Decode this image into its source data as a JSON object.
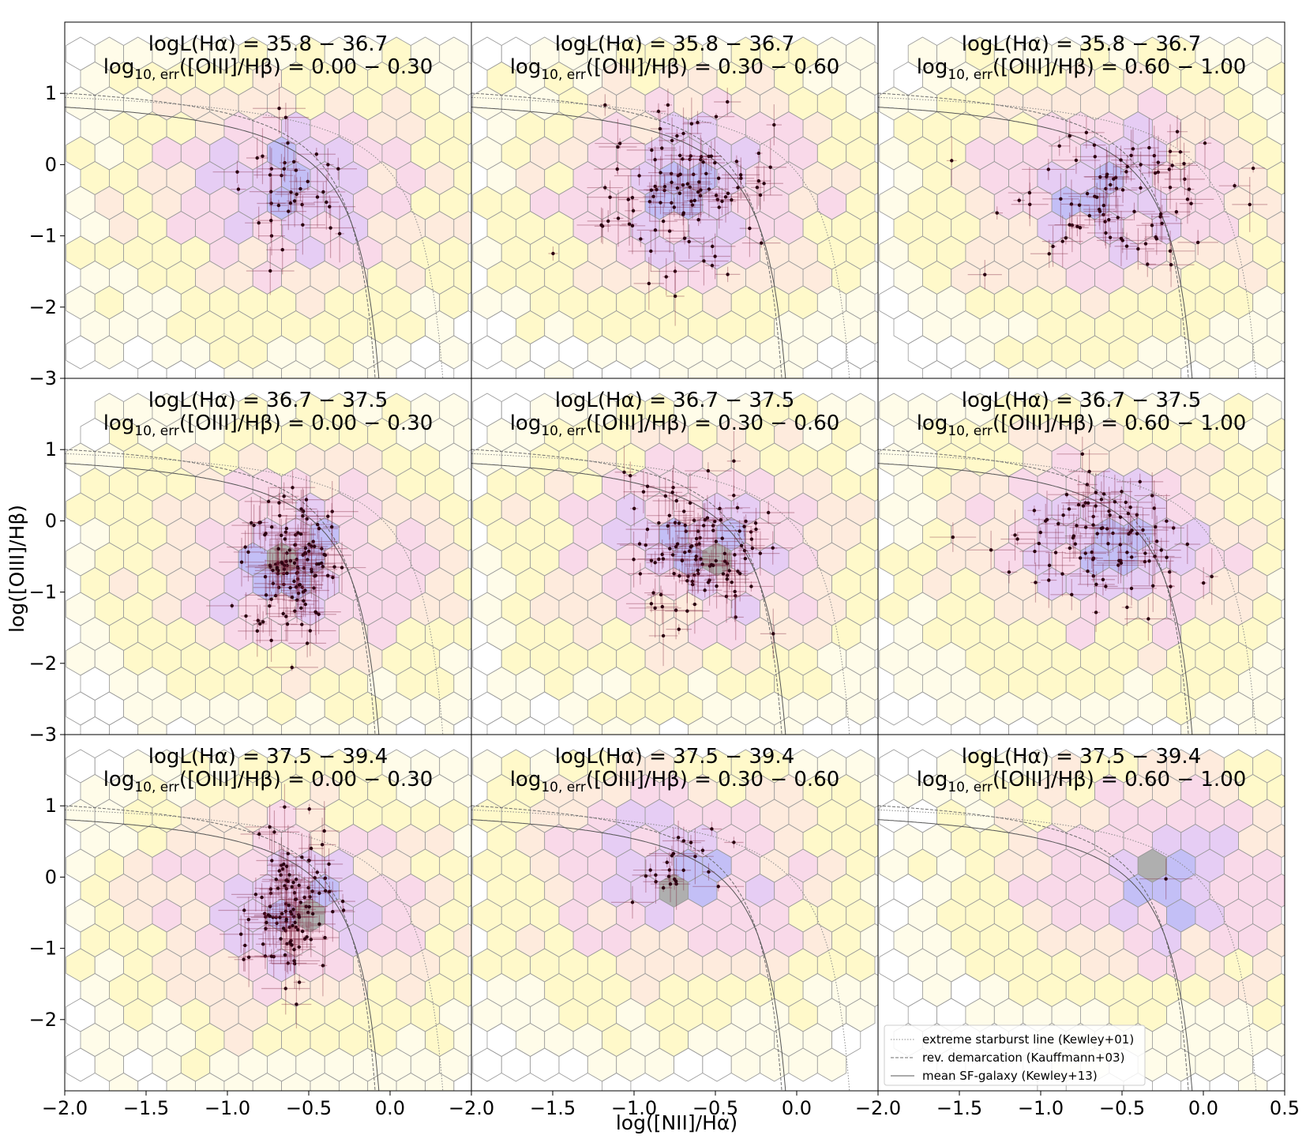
{
  "chart_data": {
    "type": "scatter",
    "layout": "3x3 grid of panels with shared axes",
    "xlabel": "log([NII]/Hα)",
    "ylabel": "log([OIII]/Hβ)",
    "xlim": [
      -2.0,
      0.5
    ],
    "ylim": [
      -3.0,
      2.0
    ],
    "x_ticks": [
      -2.0,
      -1.5,
      -1.0,
      -0.5,
      0.0
    ],
    "x_ticks_last_column": [
      -2.0,
      -1.5,
      -1.0,
      -0.5,
      0.0,
      0.5
    ],
    "x_tick_labels": [
      "−2.0",
      "−1.5",
      "−1.0",
      "−0.5",
      "0.0"
    ],
    "x_tick_labels_last_column": [
      "−2.0",
      "−1.5",
      "−1.0",
      "−0.5",
      "0.0",
      "0.5"
    ],
    "y_ticks": [
      1,
      0,
      -1,
      -2,
      -3
    ],
    "y_tick_labels": [
      "1",
      "0",
      "−1",
      "−2",
      "−3"
    ],
    "y_ticks_bottom_row": [
      1,
      0,
      -1,
      -2
    ],
    "y_tick_labels_bottom_row": [
      "1",
      "0",
      "−1",
      "−2"
    ],
    "grid": false,
    "legend": {
      "placement": "lower-left of bottom-right panel",
      "entries": [
        {
          "label": "extreme starburst line (Kewley+01)",
          "style": "dotted",
          "color": "#8a8a8a"
        },
        {
          "label": "rev. demarcation (Kauffmann+03)",
          "style": "dashed",
          "color": "#6d6d6d"
        },
        {
          "label": "mean SF-galaxy (Kewley+13)",
          "style": "solid",
          "color": "#555555"
        }
      ]
    },
    "hexbin_colors": [
      "#fffbe0",
      "#fff6b3",
      "#fde3cf",
      "#f7c9e0",
      "#dcb8f0",
      "#a9a4f2",
      "#8d8d8d"
    ],
    "point_color": "#2a0010",
    "dense_core_color": "#b41818",
    "panels": [
      {
        "row": 0,
        "col": 0,
        "title1": "logL(Hα) = 35.8 − 36.7",
        "title2_pre": "log",
        "title2_sub": "10, err",
        "title2_post": "([OIII]/Hβ) = 0.00 − 0.30"
      },
      {
        "row": 0,
        "col": 1,
        "title1": "logL(Hα) = 35.8 − 36.7",
        "title2_pre": "log",
        "title2_sub": "10, err",
        "title2_post": "([OIII]/Hβ) = 0.30 − 0.60"
      },
      {
        "row": 0,
        "col": 2,
        "title1": "logL(Hα) = 35.8 − 36.7",
        "title2_pre": "log",
        "title2_sub": "10, err",
        "title2_post": "([OIII]/Hβ) = 0.60 − 1.00"
      },
      {
        "row": 1,
        "col": 0,
        "title1": "logL(Hα) = 36.7 − 37.5",
        "title2_pre": "log",
        "title2_sub": "10, err",
        "title2_post": "([OIII]/Hβ) = 0.00 − 0.30"
      },
      {
        "row": 1,
        "col": 1,
        "title1": "logL(Hα) = 36.7 − 37.5",
        "title2_pre": "log",
        "title2_sub": "10, err",
        "title2_post": "([OIII]/Hβ) = 0.30 − 0.60"
      },
      {
        "row": 1,
        "col": 2,
        "title1": "logL(Hα) = 36.7 − 37.5",
        "title2_pre": "log",
        "title2_sub": "10, err",
        "title2_post": "([OIII]/Hβ) = 0.60 − 1.00"
      },
      {
        "row": 2,
        "col": 0,
        "title1": "logL(Hα) = 37.5 − 39.4",
        "title2_pre": "log",
        "title2_sub": "10, err",
        "title2_post": "([OIII]/Hβ) = 0.00 − 0.30"
      },
      {
        "row": 2,
        "col": 1,
        "title1": "logL(Hα) = 37.5 − 39.4",
        "title2_pre": "log",
        "title2_sub": "10, err",
        "title2_post": "([OIII]/Hβ) = 0.30 − 0.60"
      },
      {
        "row": 2,
        "col": 2,
        "title1": "logL(Hα) = 37.5 − 39.4",
        "title2_pre": "log",
        "title2_sub": "10, err",
        "title2_post": "([OIII]/Hβ) = 0.60 − 1.00"
      }
    ],
    "point_clusters": [
      {
        "panel": 0,
        "cx": -0.6,
        "cy": -0.4,
        "sx": 0.15,
        "sy": 0.45,
        "n": 40
      },
      {
        "panel": 1,
        "cx": -0.65,
        "cy": -0.4,
        "sx": 0.25,
        "sy": 0.55,
        "n": 110
      },
      {
        "panel": 2,
        "cx": -0.55,
        "cy": -0.4,
        "sx": 0.35,
        "sy": 0.45,
        "n": 90
      },
      {
        "panel": 3,
        "cx": -0.6,
        "cy": -0.6,
        "sx": 0.15,
        "sy": 0.5,
        "n": 130
      },
      {
        "panel": 4,
        "cx": -0.6,
        "cy": -0.4,
        "sx": 0.2,
        "sy": 0.5,
        "n": 120
      },
      {
        "panel": 5,
        "cx": -0.6,
        "cy": -0.3,
        "sx": 0.25,
        "sy": 0.45,
        "n": 100
      },
      {
        "panel": 6,
        "cx": -0.6,
        "cy": -0.5,
        "sx": 0.12,
        "sy": 0.5,
        "n": 120
      },
      {
        "panel": 7,
        "cx": -0.75,
        "cy": 0.0,
        "sx": 0.15,
        "sy": 0.3,
        "n": 25
      },
      {
        "panel": 8,
        "cx": -0.25,
        "cy": 0.0,
        "sx": 0.05,
        "sy": 0.05,
        "n": 1
      }
    ]
  }
}
